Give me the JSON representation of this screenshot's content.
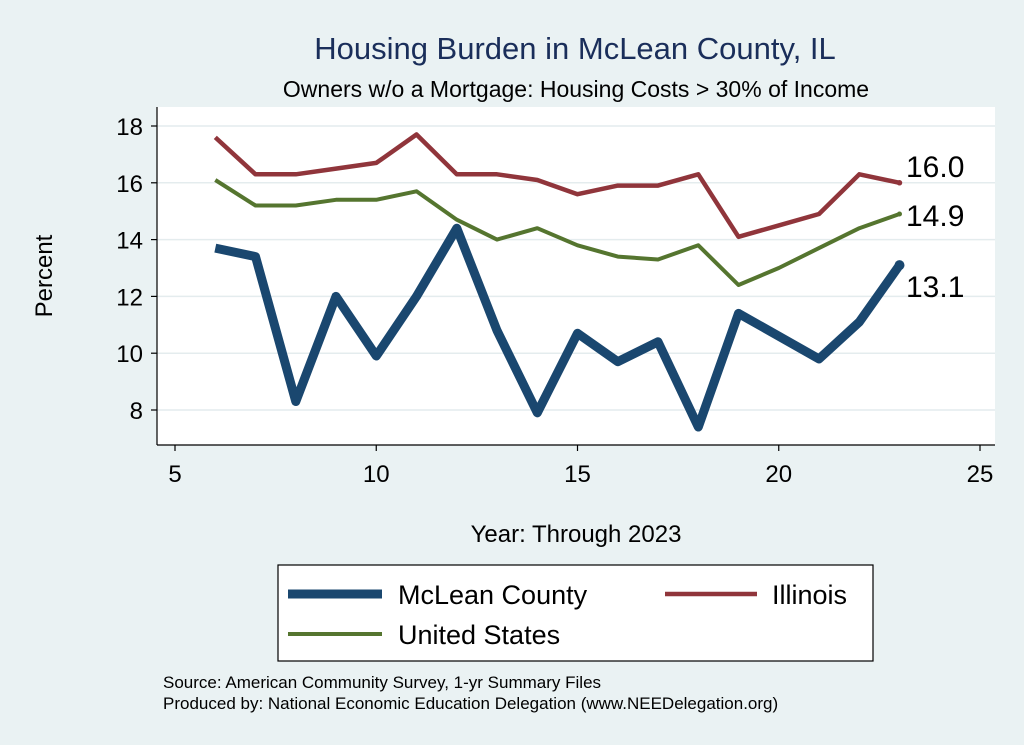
{
  "chart_data": {
    "type": "line",
    "title": "Housing Burden in McLean County, IL",
    "subtitle": "Owners w/o a Mortgage: Housing Costs > 30% of Income",
    "xlabel": "Year: Through 2023",
    "ylabel": "Percent",
    "xlim": [
      5,
      25
    ],
    "ylim": [
      7.0,
      18.5
    ],
    "xticks": [
      5,
      10,
      15,
      20,
      25
    ],
    "yticks": [
      8,
      10,
      12,
      14,
      16,
      18
    ],
    "grid": "horizontal",
    "legend_position": "bottom",
    "series": [
      {
        "name": "McLean County",
        "color": "#1a476f",
        "x": [
          6,
          7,
          8,
          9,
          10,
          11,
          12,
          13,
          14,
          15,
          16,
          17,
          18,
          19,
          20,
          21,
          22,
          23
        ],
        "values": [
          13.7,
          13.4,
          8.3,
          12.0,
          9.9,
          12.0,
          14.4,
          10.8,
          7.9,
          10.7,
          9.7,
          10.4,
          7.4,
          11.4,
          10.6,
          9.8,
          11.1,
          13.1
        ],
        "end_label": "13.1"
      },
      {
        "name": "Illinois",
        "color": "#90353b",
        "x": [
          6,
          7,
          8,
          9,
          10,
          11,
          12,
          13,
          14,
          15,
          16,
          17,
          18,
          19,
          20,
          21,
          22,
          23
        ],
        "values": [
          17.6,
          16.3,
          16.3,
          16.5,
          16.7,
          17.7,
          16.3,
          16.3,
          16.1,
          15.6,
          15.9,
          15.9,
          16.3,
          14.1,
          14.5,
          14.9,
          16.3,
          16.0
        ],
        "end_label": "16.0"
      },
      {
        "name": "United States",
        "color": "#55752f",
        "x": [
          6,
          7,
          8,
          9,
          10,
          11,
          12,
          13,
          14,
          15,
          16,
          17,
          18,
          19,
          20,
          21,
          22,
          23
        ],
        "values": [
          16.1,
          15.2,
          15.2,
          15.4,
          15.4,
          15.7,
          14.7,
          14.0,
          14.4,
          13.8,
          13.4,
          13.3,
          13.8,
          12.4,
          13.0,
          13.7,
          14.4,
          14.9
        ],
        "end_label": "14.9"
      }
    ],
    "legend": [
      "McLean County",
      "Illinois",
      "United States"
    ]
  },
  "source": {
    "line1": "Source: American Community Survey, 1-yr Summary Files",
    "line2": "Produced by: National Economic Education Delegation (www.NEEDelegation.org)"
  },
  "colors": {
    "background": "#eaf2f3",
    "plot_background": "#ffffff",
    "title": "#1a2e5a"
  }
}
